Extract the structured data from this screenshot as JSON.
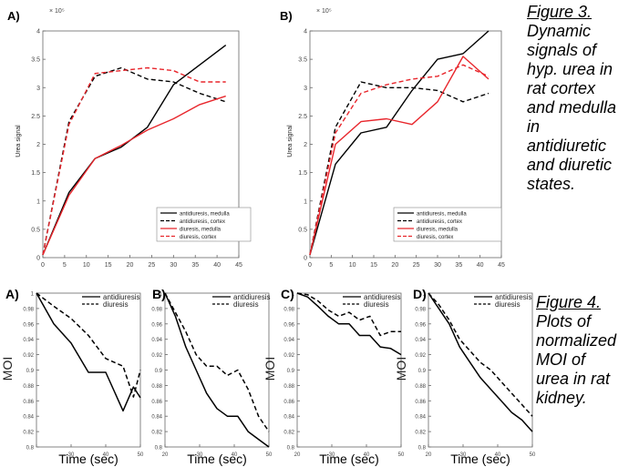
{
  "captions": {
    "fig3": {
      "label": "Figure 3.",
      "lines": [
        "Dynamic",
        "signals of",
        "hyp. urea in",
        "rat cortex",
        "and medulla",
        "in",
        "antidiuretic",
        "and diuretic",
        "states."
      ]
    },
    "fig4": {
      "label": "Figure 4.",
      "lines": [
        "Plots of",
        "normalized",
        "MOI of",
        "urea in rat",
        "kidney."
      ]
    }
  },
  "colors": {
    "black": "#000000",
    "red": "#e8262c",
    "axis": "#666666"
  },
  "chart_data": [
    {
      "panel_label": "A)",
      "type": "line",
      "ylabel": "Urea signal",
      "y_exponent": "× 10⁵",
      "xlim": [
        0,
        45
      ],
      "ylim": [
        0,
        4
      ],
      "xticks": [
        0,
        5,
        10,
        15,
        20,
        25,
        30,
        35,
        40,
        45
      ],
      "yticks": [
        0,
        0.5,
        1,
        1.5,
        2,
        2.5,
        3,
        3.5,
        4
      ],
      "series": [
        {
          "name": "antidiuresis, medulla",
          "color": "black",
          "dash": false,
          "x": [
            0,
            6,
            12,
            18,
            24,
            30,
            36,
            42
          ],
          "y": [
            0.05,
            1.15,
            1.75,
            1.95,
            2.3,
            3.05,
            3.4,
            3.75
          ]
        },
        {
          "name": "antidiuresis, cortex",
          "color": "black",
          "dash": true,
          "x": [
            0,
            6,
            12,
            18,
            24,
            30,
            36,
            42
          ],
          "y": [
            0.05,
            2.4,
            3.2,
            3.35,
            3.15,
            3.1,
            2.9,
            2.75
          ]
        },
        {
          "name": "diuresis, medulla",
          "color": "red",
          "dash": false,
          "x": [
            0,
            6,
            12,
            18,
            24,
            30,
            36,
            42
          ],
          "y": [
            0.05,
            1.1,
            1.75,
            1.98,
            2.25,
            2.45,
            2.7,
            2.85
          ]
        },
        {
          "name": "diuresis, cortex",
          "color": "red",
          "dash": true,
          "x": [
            0,
            6,
            12,
            18,
            24,
            30,
            36,
            42
          ],
          "y": [
            0.05,
            2.35,
            3.25,
            3.3,
            3.35,
            3.3,
            3.1,
            3.1
          ]
        }
      ]
    },
    {
      "panel_label": "B)",
      "type": "line",
      "ylabel": "Urea signal",
      "y_exponent": "× 10⁵",
      "xlim": [
        0,
        45
      ],
      "ylim": [
        0,
        4
      ],
      "xticks": [
        0,
        5,
        10,
        15,
        20,
        25,
        30,
        35,
        40,
        45
      ],
      "yticks": [
        0,
        0.5,
        1,
        1.5,
        2,
        2.5,
        3,
        3.5,
        4
      ],
      "series": [
        {
          "name": "antidiuresis, medulla",
          "color": "black",
          "dash": false,
          "x": [
            0,
            6,
            12,
            18,
            24,
            30,
            36,
            42
          ],
          "y": [
            0.05,
            1.65,
            2.2,
            2.3,
            2.95,
            3.5,
            3.6,
            4.0
          ]
        },
        {
          "name": "antidiuresis, cortex",
          "color": "black",
          "dash": true,
          "x": [
            0,
            6,
            12,
            18,
            24,
            30,
            36,
            42
          ],
          "y": [
            0.05,
            2.3,
            3.1,
            3.0,
            3.0,
            2.95,
            2.75,
            2.9
          ]
        },
        {
          "name": "diuresis, medulla",
          "color": "red",
          "dash": false,
          "x": [
            0,
            6,
            12,
            18,
            24,
            30,
            36,
            42
          ],
          "y": [
            0.05,
            2.0,
            2.4,
            2.45,
            2.35,
            2.75,
            3.55,
            3.15
          ]
        },
        {
          "name": "diuresis, cortex",
          "color": "red",
          "dash": true,
          "x": [
            0,
            6,
            12,
            18,
            24,
            30,
            36,
            42
          ],
          "y": [
            0.05,
            2.2,
            2.9,
            3.05,
            3.15,
            3.2,
            3.4,
            3.2
          ]
        }
      ]
    },
    {
      "panel_label": "A)",
      "type": "line",
      "xlabel": "Time (sec)",
      "ylabel": "MOI",
      "xlim": [
        20,
        50
      ],
      "ylim": [
        0.8,
        1.0
      ],
      "xticks": [
        "",
        "30",
        "40",
        "50"
      ],
      "yticks": [
        "0.8",
        "0.82",
        "0.84",
        "0.86",
        "0.88",
        "0.9",
        "0.92",
        "0.94",
        "0.96",
        "0.98",
        "1"
      ],
      "series": [
        {
          "name": "antidiuresis",
          "color": "black",
          "dash": false,
          "x": [
            20,
            25,
            30,
            35,
            40,
            45,
            48,
            50
          ],
          "y": [
            1.0,
            0.96,
            0.935,
            0.897,
            0.897,
            0.847,
            0.878,
            0.864
          ]
        },
        {
          "name": "diuresis",
          "color": "black",
          "dash": true,
          "x": [
            20,
            25,
            30,
            35,
            40,
            45,
            48,
            50
          ],
          "y": [
            1.0,
            0.983,
            0.967,
            0.945,
            0.915,
            0.905,
            0.865,
            0.9
          ]
        }
      ]
    },
    {
      "panel_label": "B)",
      "type": "line",
      "xlabel": "Time (sec)",
      "ylabel": "",
      "xlim": [
        20,
        50
      ],
      "ylim": [
        0.8,
        1.0
      ],
      "xticks": [
        "20",
        "30",
        "40",
        "50"
      ],
      "yticks": [
        "0.8",
        "0.82",
        "0.84",
        "0.86",
        "0.88",
        "0.9",
        "0.92",
        "0.94",
        "0.96",
        "0.98",
        "1"
      ],
      "series": [
        {
          "name": "antidiuresis",
          "color": "black",
          "dash": false,
          "x": [
            20,
            23,
            26,
            29,
            32,
            35,
            38,
            41,
            44,
            47,
            50
          ],
          "y": [
            1.0,
            0.97,
            0.93,
            0.9,
            0.87,
            0.85,
            0.84,
            0.84,
            0.82,
            0.81,
            0.8
          ]
        },
        {
          "name": "diuresis",
          "color": "black",
          "dash": true,
          "x": [
            20,
            23,
            26,
            29,
            32,
            35,
            38,
            41,
            44,
            47,
            50
          ],
          "y": [
            1.0,
            0.975,
            0.95,
            0.92,
            0.905,
            0.905,
            0.893,
            0.9,
            0.875,
            0.84,
            0.82
          ]
        }
      ]
    },
    {
      "panel_label": "C)",
      "type": "line",
      "xlabel": "Time (sec)",
      "ylabel": "MOI",
      "xlim": [
        20,
        50
      ],
      "ylim": [
        0.8,
        1.0
      ],
      "xticks": [
        "20",
        "30",
        "40",
        "50"
      ],
      "yticks": [
        "0.8",
        "0.82",
        "0.84",
        "0.86",
        "0.88",
        "0.9",
        "0.92",
        "0.94",
        "0.96",
        "0.98",
        "1"
      ],
      "series": [
        {
          "name": "antidiuresis",
          "color": "black",
          "dash": false,
          "x": [
            20,
            23,
            26,
            29,
            32,
            35,
            38,
            41,
            44,
            47,
            50
          ],
          "y": [
            1.0,
            0.995,
            0.983,
            0.97,
            0.96,
            0.96,
            0.945,
            0.945,
            0.93,
            0.928,
            0.92
          ]
        },
        {
          "name": "diuresis",
          "color": "black",
          "dash": true,
          "x": [
            20,
            23,
            26,
            29,
            32,
            35,
            38,
            41,
            44,
            47,
            50
          ],
          "y": [
            1.0,
            0.998,
            0.99,
            0.978,
            0.97,
            0.975,
            0.965,
            0.97,
            0.945,
            0.95,
            0.95
          ]
        }
      ]
    },
    {
      "panel_label": "D)",
      "type": "line",
      "xlabel": "Time (sec)",
      "ylabel": "MOI",
      "xlim": [
        20,
        50
      ],
      "ylim": [
        0.8,
        1.0
      ],
      "xticks": [
        "20",
        "30",
        "40",
        "50"
      ],
      "yticks": [
        "0.8",
        "0.82",
        "0.84",
        "0.86",
        "0.88",
        "0.9",
        "0.92",
        "0.94",
        "0.96",
        "0.98",
        "1"
      ],
      "series": [
        {
          "name": "antidiuresis",
          "color": "black",
          "dash": false,
          "x": [
            20,
            23,
            26,
            29,
            32,
            35,
            38,
            41,
            44,
            47,
            50
          ],
          "y": [
            1.0,
            0.98,
            0.96,
            0.93,
            0.91,
            0.89,
            0.875,
            0.86,
            0.845,
            0.835,
            0.82
          ]
        },
        {
          "name": "diuresis",
          "color": "black",
          "dash": true,
          "x": [
            20,
            23,
            26,
            29,
            32,
            35,
            38,
            41,
            44,
            47,
            50
          ],
          "y": [
            1.0,
            0.985,
            0.965,
            0.94,
            0.925,
            0.91,
            0.9,
            0.885,
            0.87,
            0.855,
            0.84
          ]
        }
      ]
    }
  ]
}
